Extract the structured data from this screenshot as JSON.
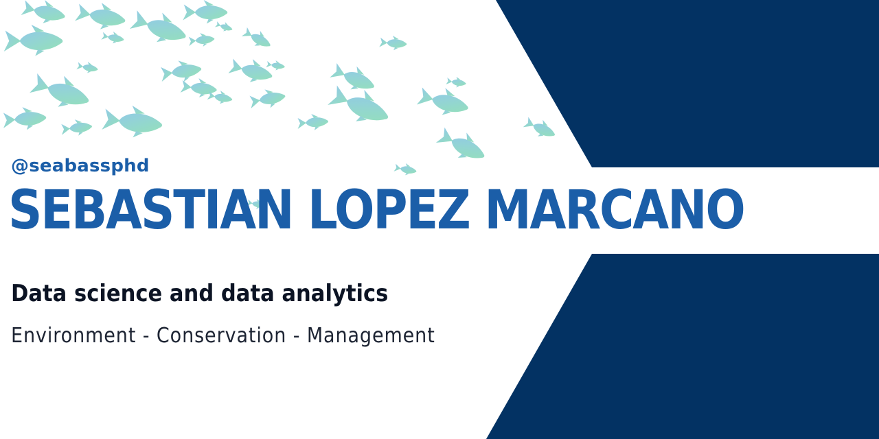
{
  "banner": {
    "handle": "@seabassphd",
    "name": "SEBASTIAN LOPEZ MARCANO",
    "tagline": "Data science and data analytics",
    "subtitle": "Environment - Conservation - Management"
  },
  "colors": {
    "navy": "#033263",
    "name_blue": "#1b5ea8",
    "fish_blue": "#8fd0df",
    "fish_green": "#8fdcbc",
    "text_dark": "#0c1424"
  },
  "decoration": {
    "icon": "fish-school-icon"
  }
}
